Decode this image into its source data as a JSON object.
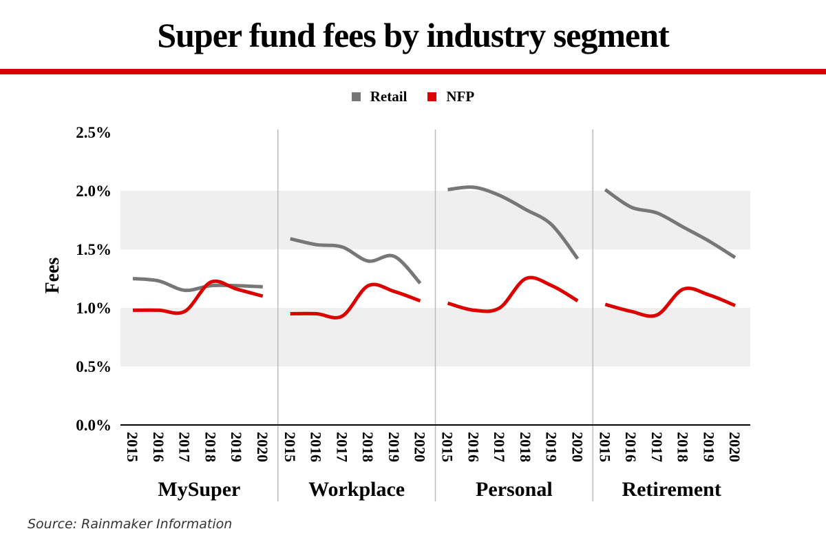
{
  "chart_data": {
    "type": "line",
    "title": "Super fund fees by industry segment",
    "xlabel": "",
    "ylabel": "Fees",
    "ylim": [
      0,
      2.5
    ],
    "yticks": [
      "0.0%",
      "0.5%",
      "1.0%",
      "1.5%",
      "2.0%",
      "2.5%"
    ],
    "ytick_values": [
      0,
      0.5,
      1.0,
      1.5,
      2.0,
      2.5
    ],
    "grid": "alternating shaded bands",
    "legend_position": "top-center",
    "legend": [
      {
        "name": "Retail",
        "color": "#777777"
      },
      {
        "name": "NFP",
        "color": "#dd0000"
      }
    ],
    "categories": [
      "2015",
      "2016",
      "2017",
      "2018",
      "2019",
      "2020"
    ],
    "panels": [
      {
        "name": "MySuper",
        "series": [
          {
            "name": "Retail",
            "values": [
              1.25,
              1.23,
              1.15,
              1.19,
              1.19,
              1.18
            ]
          },
          {
            "name": "NFP",
            "values": [
              0.98,
              0.98,
              0.97,
              1.22,
              1.16,
              1.1
            ]
          }
        ]
      },
      {
        "name": "Workplace",
        "series": [
          {
            "name": "Retail",
            "values": [
              1.59,
              1.54,
              1.52,
              1.4,
              1.44,
              1.21
            ]
          },
          {
            "name": "NFP",
            "values": [
              0.95,
              0.95,
              0.93,
              1.19,
              1.14,
              1.06
            ]
          }
        ]
      },
      {
        "name": "Personal",
        "series": [
          {
            "name": "Retail",
            "values": [
              2.01,
              2.03,
              1.96,
              1.84,
              1.71,
              1.42
            ]
          },
          {
            "name": "NFP",
            "values": [
              1.04,
              0.98,
              1.0,
              1.25,
              1.19,
              1.06
            ]
          }
        ]
      },
      {
        "name": "Retirement",
        "series": [
          {
            "name": "Retail",
            "values": [
              2.01,
              1.86,
              1.81,
              1.69,
              1.57,
              1.43
            ]
          },
          {
            "name": "NFP",
            "values": [
              1.03,
              0.97,
              0.94,
              1.16,
              1.11,
              1.02
            ]
          }
        ]
      }
    ],
    "source": "Source: Rainmaker Information"
  }
}
